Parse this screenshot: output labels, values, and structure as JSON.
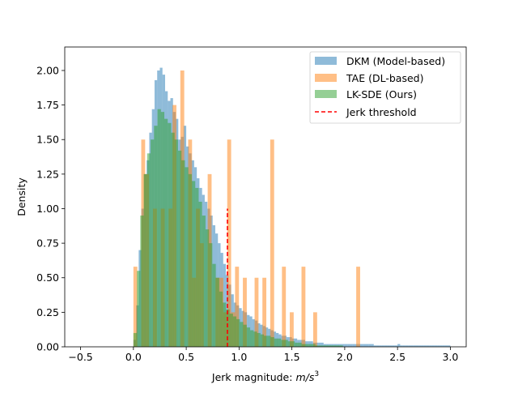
{
  "chart_data": {
    "type": "histogram",
    "title": "",
    "xlabel_prefix": "Jerk magnitude: ",
    "xlabel_unit": "m/s",
    "xlabel_exp": "3",
    "ylabel": "Density",
    "xlim": [
      -0.65,
      3.15
    ],
    "ylim": [
      0,
      2.17
    ],
    "xticks": [
      -0.5,
      0.0,
      0.5,
      1.0,
      1.5,
      2.0,
      2.5,
      3.0
    ],
    "xtick_labels": [
      "−0.5",
      "0.0",
      "0.5",
      "1.0",
      "1.5",
      "2.0",
      "2.5",
      "3.0"
    ],
    "yticks": [
      0.0,
      0.25,
      0.5,
      0.75,
      1.0,
      1.25,
      1.5,
      1.75,
      2.0
    ],
    "ytick_labels": [
      "0.00",
      "0.25",
      "0.50",
      "0.75",
      "1.00",
      "1.25",
      "1.50",
      "1.75",
      "2.00"
    ],
    "grid": false,
    "legend_position": "top-right",
    "series": [
      {
        "name": "DKM (Model-based)",
        "color": "#1f77b4",
        "opacity": 0.5,
        "bin_start": 0.0,
        "bin_width": 0.025,
        "values": [
          0.05,
          0.3,
          0.7,
          1.0,
          1.25,
          1.35,
          1.55,
          1.72,
          1.93,
          2.0,
          2.02,
          1.97,
          1.85,
          1.78,
          1.8,
          1.7,
          1.65,
          1.5,
          1.52,
          1.6,
          1.45,
          1.4,
          1.35,
          1.3,
          1.22,
          1.15,
          1.1,
          1.05,
          1.0,
          0.95,
          0.88,
          0.82,
          0.75,
          0.68,
          0.6,
          0.52,
          0.45,
          0.38,
          0.32,
          0.3,
          0.28,
          0.26,
          0.25,
          0.23,
          0.22,
          0.2,
          0.19,
          0.17,
          0.16,
          0.15,
          0.14,
          0.13,
          0.12,
          0.11,
          0.1,
          0.09,
          0.08,
          0.08,
          0.07,
          0.07,
          0.06,
          0.06,
          0.05,
          0.05,
          0.05,
          0.04,
          0.04,
          0.04,
          0.03,
          0.03,
          0.03,
          0.03,
          0.02,
          0.02,
          0.02,
          0.02,
          0.02,
          0.02,
          0.02,
          0.02,
          0.02,
          0.02,
          0.02,
          0.02,
          0.02,
          0.02,
          0.02,
          0.02,
          0.02,
          0.02,
          0.02,
          0.01,
          0.01,
          0.01,
          0.01,
          0.01,
          0.01,
          0.01,
          0.01,
          0.01,
          0.02,
          0.01,
          0.01,
          0.01,
          0.01,
          0.01,
          0.01,
          0.01,
          0.01,
          0.01,
          0.01,
          0.01,
          0.01,
          0.01,
          0.01,
          0.01,
          0.01,
          0.01,
          0.01,
          0.01
        ]
      },
      {
        "name": "TAE (DL-based)",
        "color": "#ff7f0e",
        "opacity": 0.5,
        "bin_start": 0.0,
        "bin_width": 0.037,
        "values": [
          0.58,
          0.0,
          1.5,
          1.25,
          0.0,
          1.0,
          0.0,
          1.0,
          0.0,
          1.0,
          1.75,
          0.0,
          2.0,
          0.0,
          1.5,
          0.5,
          1.0,
          0.75,
          0.0,
          1.25,
          0.0,
          0.5,
          0.5,
          0.25,
          1.5,
          0.25,
          0.58,
          0.0,
          0.5,
          0.0,
          0.0,
          0.5,
          0.0,
          0.5,
          0.0,
          1.5,
          0.0,
          0.0,
          0.58,
          0.0,
          0.25,
          0.0,
          0.0,
          0.58,
          0.0,
          0.0,
          0.25,
          0.0,
          0.0,
          0.0,
          0.0,
          0.0,
          0.0,
          0.0,
          0.0,
          0.0,
          0.0,
          0.58,
          0.0,
          0.0,
          0.0,
          0.0,
          0.0,
          0.0,
          0.0,
          0.0,
          0.0,
          0.0,
          0.0,
          0.0,
          0.0,
          0.0,
          0.0,
          0.0,
          0.0,
          0.0,
          0.0,
          0.0,
          0.0,
          0.0,
          0.0,
          0.0,
          0.0,
          0.0,
          0.0,
          0.0,
          0.0,
          0.0,
          0.0,
          0.0,
          0.0,
          0.0,
          0.0,
          0.0,
          0.0,
          0.0,
          0.0,
          0.0,
          0.0,
          0.0,
          0.0,
          0.0,
          0.0,
          0.0,
          0.0,
          0.0,
          0.0,
          0.0,
          0.0,
          0.0,
          0.0
        ]
      },
      {
        "name": "LK-SDE (Ours)",
        "color": "#2ca02c",
        "opacity": 0.5,
        "bin_start": 0.0,
        "bin_width": 0.0325,
        "values": [
          0.1,
          0.55,
          0.95,
          1.25,
          1.4,
          1.5,
          1.6,
          1.72,
          1.7,
          1.65,
          1.62,
          1.55,
          1.5,
          1.42,
          1.35,
          1.3,
          1.25,
          1.2,
          1.15,
          1.05,
          0.95,
          0.85,
          0.75,
          0.6,
          0.5,
          0.4,
          0.32,
          0.27,
          0.24,
          0.22,
          0.2,
          0.18,
          0.16,
          0.14,
          0.12,
          0.11,
          0.1,
          0.09,
          0.08,
          0.08,
          0.07,
          0.06,
          0.06,
          0.05,
          0.05,
          0.04,
          0.04,
          0.03,
          0.03,
          0.02,
          0.02,
          0.02,
          0.02,
          0.01,
          0.01,
          0.01,
          0.01,
          0.01,
          0.01,
          0.01,
          0.01,
          0.0,
          0.0,
          0.0,
          0.0,
          0.0,
          0.0,
          0.0,
          0.0,
          0.0,
          0.0,
          0.0,
          0.0,
          0.0,
          0.0,
          0.0,
          0.0,
          0.0,
          0.0,
          0.0,
          0.0,
          0.0,
          0.0,
          0.0,
          0.0,
          0.0,
          0.0,
          0.0,
          0.0,
          0.0
        ]
      }
    ],
    "threshold": {
      "name": "Jerk threshold",
      "x": 0.89,
      "y_from": 0.0,
      "y_to": 1.0,
      "color": "#ff0000"
    }
  }
}
